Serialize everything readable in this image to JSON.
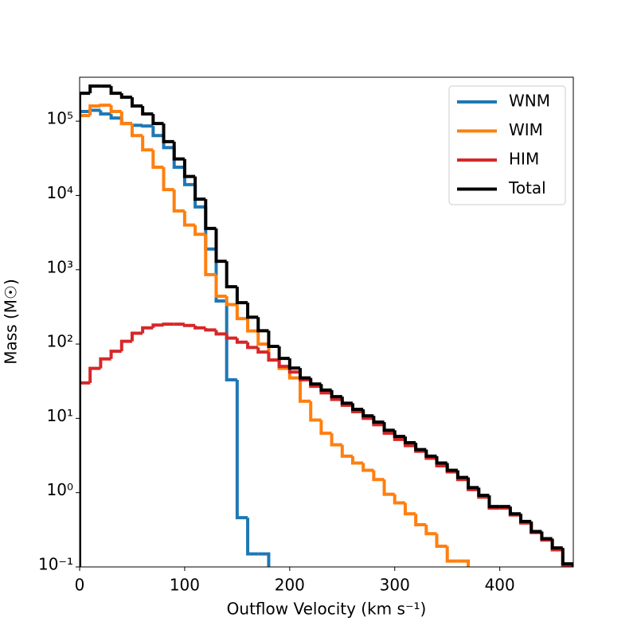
{
  "chart_data": {
    "type": "histogram",
    "xlabel": "Outflow Velocity (km s⁻¹)",
    "ylabel": "Mass (M☉)",
    "bins": [
      0,
      10,
      20,
      30,
      40,
      50,
      60,
      70,
      80,
      90,
      100,
      110,
      120,
      130,
      140,
      150,
      160,
      170,
      180,
      190,
      200,
      210,
      220,
      230,
      240,
      250,
      260,
      270,
      280,
      290,
      300,
      310,
      320,
      330,
      340,
      350,
      360,
      370,
      380,
      390,
      400,
      410,
      420,
      430,
      440,
      450,
      460,
      470
    ],
    "series": [
      {
        "name": "WNM",
        "color": "#1f77b4",
        "values": [
          135000,
          140000,
          125000,
          110000,
          93000,
          88000,
          86000,
          64000,
          44000,
          24000,
          14000,
          7000,
          1900,
          380,
          33,
          0.46,
          0.15,
          0.15,
          null,
          null,
          null,
          null,
          null,
          null,
          null,
          null,
          null,
          null,
          null,
          null,
          null,
          null,
          null,
          null,
          null,
          null,
          null,
          null,
          null,
          null,
          null,
          null,
          null,
          null,
          null,
          null,
          null
        ]
      },
      {
        "name": "WIM",
        "color": "#ff7f0e",
        "values": [
          119000,
          160000,
          164000,
          135000,
          93000,
          64000,
          41000,
          24000,
          12000,
          6200,
          4000,
          3000,
          860,
          440,
          340,
          220,
          150,
          100,
          61,
          47,
          35,
          17,
          9.5,
          6.3,
          4.4,
          3.1,
          2.5,
          2.0,
          1.5,
          0.95,
          0.73,
          0.52,
          0.37,
          0.28,
          0.19,
          0.12,
          0.12,
          null,
          null,
          null,
          null,
          null,
          null,
          null,
          null,
          null,
          null
        ]
      },
      {
        "name": "HIM",
        "color": "#d62728",
        "values": [
          30,
          47,
          63,
          80,
          109,
          140,
          165,
          180,
          185,
          185,
          178,
          165,
          155,
          137,
          120,
          106,
          90,
          78,
          61,
          50,
          42,
          33,
          27,
          22,
          18,
          15,
          12.3,
          10,
          8.2,
          6.3,
          5.2,
          4.3,
          3.6,
          2.9,
          2.3,
          1.9,
          1.5,
          1.1,
          0.87,
          0.62,
          0.62,
          0.5,
          0.39,
          0.29,
          0.23,
          0.17,
          0.1
        ]
      },
      {
        "name": "Total",
        "color": "#000000",
        "values": [
          237000,
          296000,
          296000,
          237000,
          210000,
          160000,
          125000,
          93000,
          53000,
          31000,
          18000,
          8900,
          3600,
          1300,
          590,
          360,
          230,
          151,
          93,
          64,
          47.5,
          35,
          29,
          24,
          19.6,
          16,
          13.2,
          10.8,
          8.9,
          6.9,
          5.7,
          4.7,
          3.8,
          3.1,
          2.5,
          2.0,
          1.6,
          1.17,
          0.92,
          0.65,
          0.65,
          0.52,
          0.41,
          0.3,
          0.24,
          0.18,
          0.11
        ]
      }
    ],
    "xlim": [
      0,
      470
    ],
    "xticks": [
      0,
      100,
      200,
      300,
      400
    ],
    "ylim": [
      0.1,
      390000
    ],
    "yscale": "log",
    "yticks": [
      {
        "value": 0.1,
        "label": "10⁻¹"
      },
      {
        "value": 1,
        "label": "10⁰"
      },
      {
        "value": 10,
        "label": "10¹"
      },
      {
        "value": 100,
        "label": "10²"
      },
      {
        "value": 1000,
        "label": "10³"
      },
      {
        "value": 10000,
        "label": "10⁴"
      },
      {
        "value": 100000,
        "label": "10⁵"
      }
    ],
    "legend": "upper right"
  }
}
